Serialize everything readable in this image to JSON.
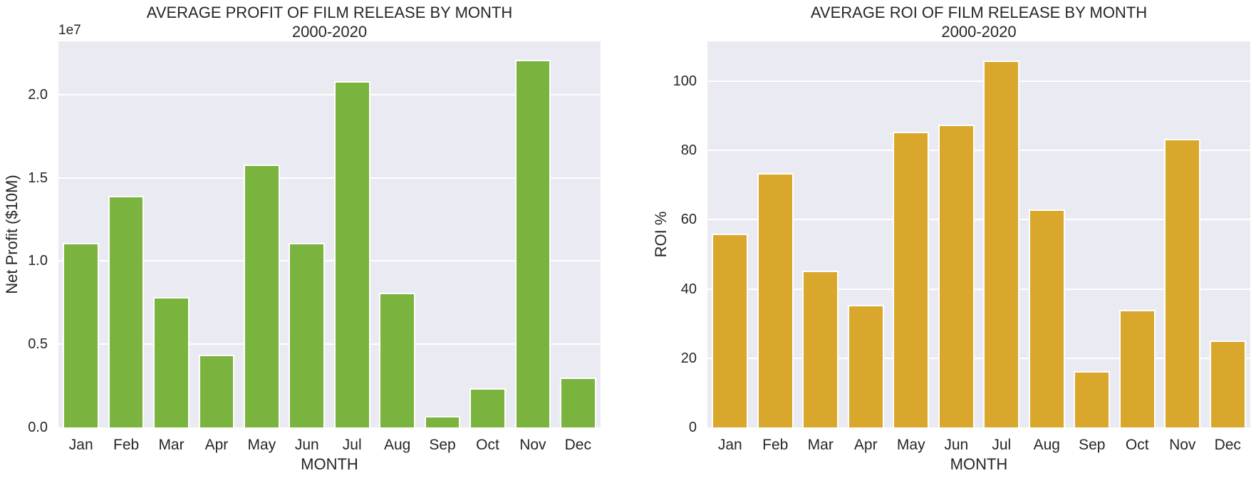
{
  "figure": {
    "background": "#FFFFFF",
    "plot_background": "#EAEAF2",
    "grid_color": "#FFFFFF",
    "text_color": "#262626",
    "bar_edge_color": "#FFFFFF"
  },
  "chart_data": [
    {
      "type": "bar",
      "title": "AVERAGE PROFIT OF FILM RELEASE BY MONTH",
      "subtitle": "2000-2020",
      "categories": [
        "Jan",
        "Feb",
        "Mar",
        "Apr",
        "May",
        "Jun",
        "Jul",
        "Aug",
        "Sep",
        "Oct",
        "Nov",
        "Dec"
      ],
      "values": [
        11100000,
        13900000,
        7850000,
        4350000,
        15800000,
        11100000,
        20800000,
        8100000,
        700000,
        2350000,
        22100000,
        3000000
      ],
      "xlabel": "MONTH",
      "ylabel": "Net Profit ($10M)",
      "ylim": [
        0,
        23200000
      ],
      "yticks": [
        0,
        5000000,
        10000000,
        15000000,
        20000000
      ],
      "ytick_labels": [
        "0.0",
        "0.5",
        "1.0",
        "1.5",
        "2.0"
      ],
      "y_offset_label": "1e7",
      "bar_color": "#7AB33D",
      "grid": true,
      "legend": false
    },
    {
      "type": "bar",
      "title": "AVERAGE ROI OF FILM RELEASE BY MONTH",
      "subtitle": "2000-2020",
      "categories": [
        "Jan",
        "Feb",
        "Mar",
        "Apr",
        "May",
        "Jun",
        "Jul",
        "Aug",
        "Sep",
        "Oct",
        "Nov",
        "Dec"
      ],
      "values": [
        56,
        73.5,
        45.3,
        35.4,
        85.4,
        87.4,
        106,
        63,
        16.3,
        34,
        83.3,
        25
      ],
      "xlabel": "MONTH",
      "ylabel": "ROI %",
      "ylim": [
        0,
        111.5
      ],
      "yticks": [
        0,
        20,
        40,
        60,
        80,
        100
      ],
      "ytick_labels": [
        "0",
        "20",
        "40",
        "60",
        "80",
        "100"
      ],
      "y_offset_label": "",
      "bar_color": "#D9A72B",
      "grid": true,
      "legend": false
    }
  ]
}
